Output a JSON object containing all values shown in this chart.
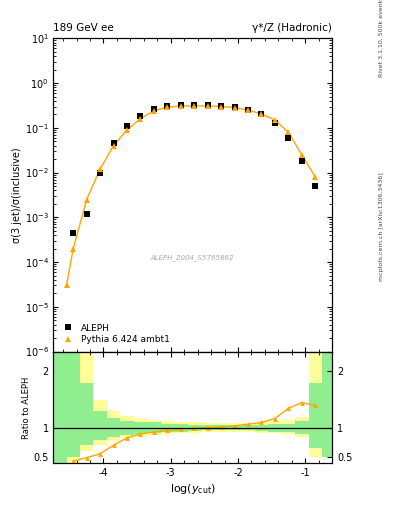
{
  "title_left": "189 GeV ee",
  "title_right": "γ*/Z (Hadronic)",
  "ylabel_main": "σ(3 jet)/σ(inclusive)",
  "ylabel_ratio": "Ratio to ALEPH",
  "xlabel": "log(y_{cut})",
  "right_label_top": "Rivet 3.1.10, 500k events",
  "right_label_bottom": "mcplots.cern.ch [arXiv:1306.3436]",
  "watermark": "ALEPH_2004_S5765862",
  "aleph_x": [
    -4.45,
    -4.25,
    -4.05,
    -3.85,
    -3.65,
    -3.45,
    -3.25,
    -3.05,
    -2.85,
    -2.65,
    -2.45,
    -2.25,
    -2.05,
    -1.85,
    -1.65,
    -1.45,
    -1.25,
    -1.05,
    -0.85
  ],
  "aleph_y": [
    0.00045,
    0.0012,
    0.01,
    0.045,
    0.11,
    0.18,
    0.27,
    0.31,
    0.33,
    0.33,
    0.32,
    0.31,
    0.29,
    0.25,
    0.2,
    0.13,
    0.06,
    0.018,
    0.005
  ],
  "pythia_x": [
    -4.55,
    -4.45,
    -4.25,
    -4.05,
    -3.85,
    -3.65,
    -3.45,
    -3.25,
    -3.05,
    -2.85,
    -2.65,
    -2.45,
    -2.25,
    -2.05,
    -1.85,
    -1.65,
    -1.45,
    -1.25,
    -1.05,
    -0.85
  ],
  "pythia_y": [
    3e-05,
    0.0002,
    0.0025,
    0.012,
    0.04,
    0.09,
    0.16,
    0.24,
    0.29,
    0.31,
    0.31,
    0.31,
    0.3,
    0.285,
    0.25,
    0.205,
    0.15,
    0.08,
    0.025,
    0.008
  ],
  "ratio_x": [
    -4.45,
    -4.25,
    -4.05,
    -3.85,
    -3.65,
    -3.45,
    -3.25,
    -3.05,
    -2.85,
    -2.65,
    -2.45,
    -2.25,
    -2.05,
    -1.85,
    -1.65,
    -1.45,
    -1.25,
    -1.05,
    -0.85
  ],
  "ratio_y": [
    0.42,
    0.48,
    0.55,
    0.7,
    0.83,
    0.9,
    0.93,
    0.96,
    0.98,
    1.0,
    1.01,
    1.02,
    1.04,
    1.07,
    1.1,
    1.17,
    1.35,
    1.45,
    1.4
  ],
  "band_color_green": "#90ee90",
  "band_color_yellow": "#ffff99",
  "aleph_color": "#000000",
  "pythia_color": "#ffa500",
  "xlim": [
    -4.75,
    -0.6
  ],
  "ylim_main": [
    1e-06,
    10
  ],
  "ylim_ratio_low": 0.38,
  "ylim_ratio_high": 2.35
}
